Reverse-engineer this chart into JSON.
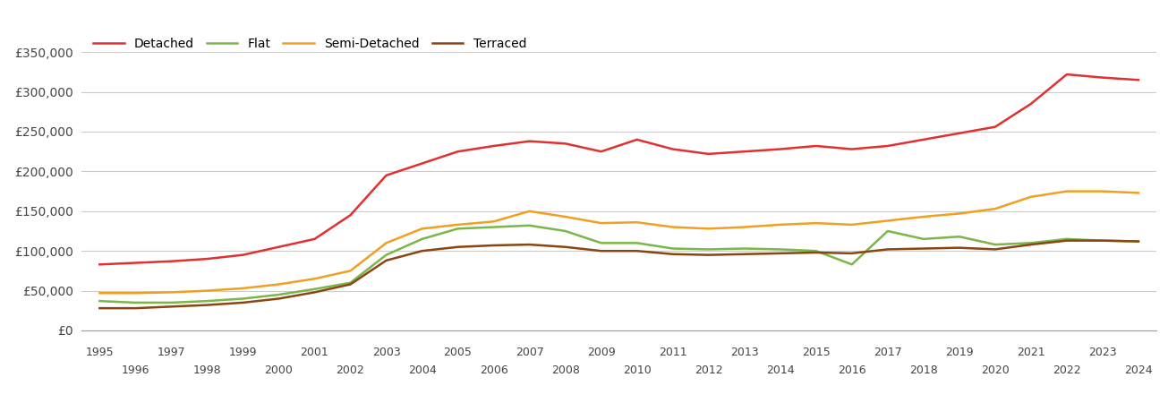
{
  "title": "",
  "years": [
    1995,
    1996,
    1997,
    1998,
    1999,
    2000,
    2001,
    2002,
    2003,
    2004,
    2005,
    2006,
    2007,
    2008,
    2009,
    2010,
    2011,
    2012,
    2013,
    2014,
    2015,
    2016,
    2017,
    2018,
    2019,
    2020,
    2021,
    2022,
    2023,
    2024
  ],
  "detached": [
    83000,
    85000,
    87000,
    90000,
    95000,
    105000,
    115000,
    145000,
    195000,
    210000,
    225000,
    232000,
    238000,
    235000,
    225000,
    240000,
    228000,
    222000,
    225000,
    228000,
    232000,
    228000,
    232000,
    240000,
    248000,
    256000,
    285000,
    322000,
    318000,
    315000
  ],
  "flat": [
    37000,
    35000,
    35000,
    37000,
    40000,
    45000,
    52000,
    60000,
    95000,
    115000,
    128000,
    130000,
    132000,
    125000,
    110000,
    110000,
    103000,
    102000,
    103000,
    102000,
    100000,
    83000,
    125000,
    115000,
    118000,
    108000,
    110000,
    115000,
    113000,
    112000
  ],
  "semi_detached": [
    47000,
    47000,
    48000,
    50000,
    53000,
    58000,
    65000,
    75000,
    110000,
    128000,
    133000,
    137000,
    150000,
    143000,
    135000,
    136000,
    130000,
    128000,
    130000,
    133000,
    135000,
    133000,
    138000,
    143000,
    147000,
    153000,
    168000,
    175000,
    175000,
    173000
  ],
  "terraced": [
    28000,
    28000,
    30000,
    32000,
    35000,
    40000,
    48000,
    58000,
    88000,
    100000,
    105000,
    107000,
    108000,
    105000,
    100000,
    100000,
    96000,
    95000,
    96000,
    97000,
    98000,
    97000,
    102000,
    103000,
    104000,
    102000,
    108000,
    113000,
    113000,
    112000
  ],
  "colors": {
    "detached": "#e03030",
    "flat": "#7ab648",
    "semi_detached": "#f0a020",
    "terraced": "#8B4513"
  },
  "ylim": [
    0,
    375000
  ],
  "yticks": [
    0,
    50000,
    100000,
    150000,
    200000,
    250000,
    300000,
    350000
  ],
  "background_color": "#ffffff",
  "grid_color": "#cccccc",
  "line_width": 1.8,
  "odd_years": [
    1995,
    1997,
    1999,
    2001,
    2003,
    2005,
    2007,
    2009,
    2011,
    2013,
    2015,
    2017,
    2019,
    2021,
    2023
  ],
  "even_years": [
    1996,
    1998,
    2000,
    2002,
    2004,
    2006,
    2008,
    2010,
    2012,
    2014,
    2016,
    2018,
    2020,
    2022,
    2024
  ]
}
